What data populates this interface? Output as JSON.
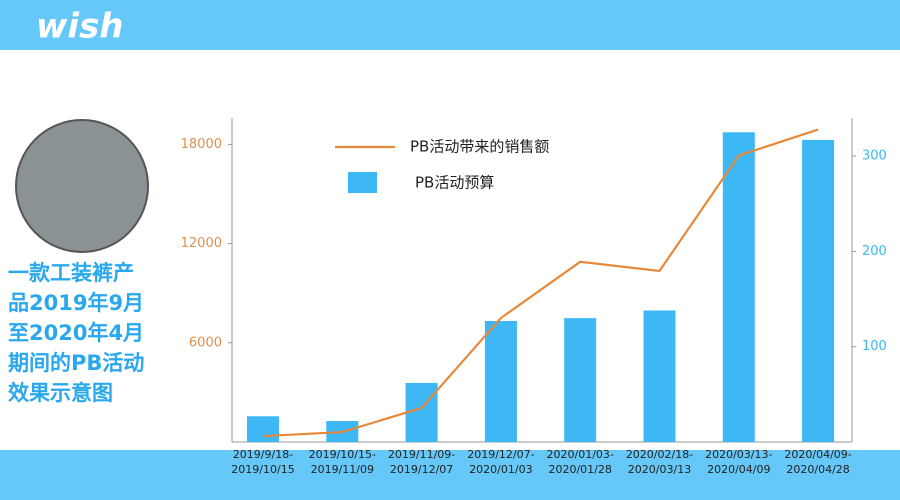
{
  "header": {
    "logo": "wish"
  },
  "sidebar": {
    "caption_lines": [
      "一款工装裤产",
      "品2019年9月",
      "至2020年4月",
      "期间的PB活动",
      "效果示意图"
    ]
  },
  "chart_data": {
    "type": "combo",
    "categories": [
      [
        "2019/9/18-",
        "2019/10/15"
      ],
      [
        "2019/10/15-",
        "2019/11/09"
      ],
      [
        "2019/11/09-",
        "2019/12/07"
      ],
      [
        "2019/12/07-",
        "2020/01/03"
      ],
      [
        "2020/01/03-",
        "2020/01/28"
      ],
      [
        "2020/02/18-",
        "2020/03/13"
      ],
      [
        "2020/03/13-",
        "2020/04/09"
      ],
      [
        "2020/04/09-",
        "2020/04/28"
      ]
    ],
    "series": [
      {
        "name": "PB活动带来的销售额",
        "type": "line",
        "color": "#e8893a",
        "axis": "y",
        "values": [
          360,
          600,
          2060,
          7500,
          10900,
          10350,
          17330,
          18900
        ]
      },
      {
        "name": "PB活动预算",
        "type": "bar",
        "color": "#3db8f5",
        "axis": "y2",
        "values": [
          27,
          22,
          62,
          127,
          130,
          138,
          325,
          317
        ]
      }
    ],
    "ylim": [
      0,
      19600
    ],
    "yticks": [
      6000,
      12000,
      18000
    ],
    "y2lim": [
      0,
      340
    ],
    "y2ticks": [
      100,
      200,
      300
    ],
    "grid": false
  }
}
